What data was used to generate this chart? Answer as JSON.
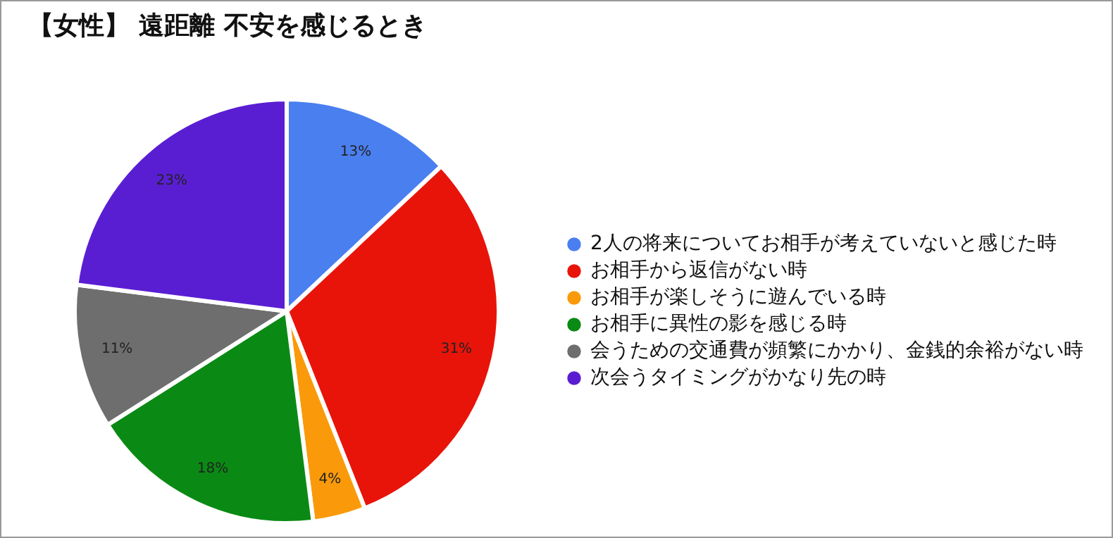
{
  "chart_data": {
    "type": "pie",
    "title": "【女性】 遠距離 不安を感じるとき",
    "categories": [
      "2人の将来についてお相手が考えていないと感じた時",
      "お相手から返信がない時",
      "お相手が楽しそうに遊んでいる時",
      "お相手に異性の影を感じる時",
      "会うための交通費が頻繁にかかり、金銭的余裕がない時",
      "次会うタイミングがかなり先の時"
    ],
    "values": [
      13,
      31,
      4,
      18,
      11,
      23
    ],
    "value_labels": [
      "13%",
      "31%",
      "4%",
      "18%",
      "11%",
      "23%"
    ],
    "colors": [
      "#4a7ff0",
      "#e8140a",
      "#fa9a0a",
      "#0a8a14",
      "#6e6e6e",
      "#5a1ed2"
    ],
    "legend": "right"
  }
}
